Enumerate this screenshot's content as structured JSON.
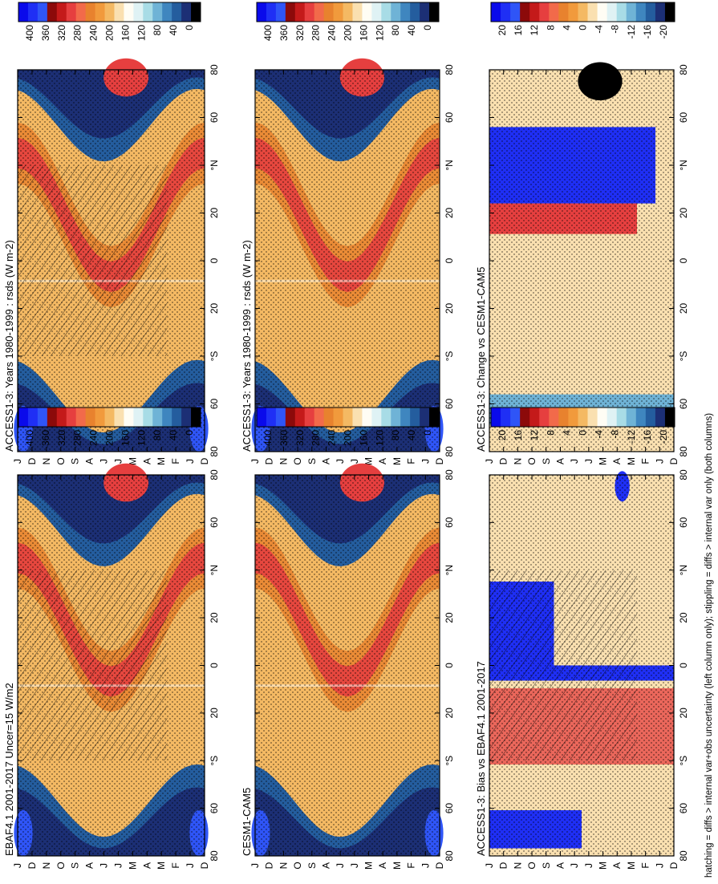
{
  "figure": {
    "footnote": "hatching = diffs > internal var+obs uncertainty (left column only); stippling = diffs > internal var only (both columns)"
  },
  "colors": {
    "abs_scale": [
      "#0a0aeb",
      "#1f2ff5",
      "#2f55f7",
      "#8c0a0a",
      "#c41a1a",
      "#e63f3f",
      "#f26a4a",
      "#e8822e",
      "#f19a3c",
      "#f4b963",
      "#fae0b0",
      "#fffdf4",
      "#dff2f4",
      "#a8dce6",
      "#6fb3d6",
      "#3f86bf",
      "#245d9e",
      "#1c2f75",
      "#000000"
    ],
    "diff_scale": [
      "#0a0aeb",
      "#1f2ff5",
      "#2f55f7",
      "#8c0a0a",
      "#c41a1a",
      "#e63f3f",
      "#f26a4a",
      "#e8822e",
      "#f19a3c",
      "#f4b963",
      "#fae0b0",
      "#fffdf4",
      "#dff2f4",
      "#a8dce6",
      "#6fb3d6",
      "#3f86bf",
      "#245d9e",
      "#1c2f75",
      "#000000"
    ],
    "stipple": "#000000"
  },
  "chart_data": [
    {
      "type": "heatmap",
      "title": "ACCESS1-3: Years 1980-1999 : rsds (W m-2)",
      "x_ticks": [
        "D",
        "J",
        "F",
        "M",
        "A",
        "M",
        "J",
        "J",
        "A",
        "S",
        "O",
        "N",
        "D",
        "J"
      ],
      "y_ticks": [
        "80",
        "60",
        "°N",
        "20",
        "0",
        "20",
        "°S",
        "60",
        "80"
      ],
      "colorbar": [
        "400",
        "360",
        "320",
        "280",
        "240",
        "200",
        "160",
        "120",
        "80",
        "40",
        "0"
      ],
      "hatched": true,
      "stippled": true
    },
    {
      "type": "heatmap",
      "title": "ACCESS1-3: Years 1980-1999 : rsds (W m-2)",
      "x_ticks": [
        "D",
        "J",
        "F",
        "M",
        "A",
        "M",
        "J",
        "J",
        "A",
        "S",
        "O",
        "N",
        "D",
        "J"
      ],
      "y_ticks": [
        "80",
        "60",
        "°N",
        "20",
        "0",
        "20",
        "°S",
        "60",
        "80"
      ],
      "colorbar": [
        "400",
        "360",
        "320",
        "280",
        "240",
        "200",
        "160",
        "120",
        "80",
        "40",
        "0"
      ],
      "hatched": false,
      "stippled": true
    },
    {
      "type": "heatmap",
      "title": "EBAF4.1 2001-2017 Uncer=15 W/m2",
      "x_ticks": [
        "D",
        "J",
        "F",
        "M",
        "A",
        "M",
        "J",
        "J",
        "A",
        "S",
        "O",
        "N",
        "D",
        "J"
      ],
      "y_ticks": [
        "80",
        "60",
        "°N",
        "20",
        "0",
        "20",
        "°S",
        "60",
        "80"
      ],
      "colorbar": [
        "400",
        "360",
        "320",
        "280",
        "240",
        "200",
        "160",
        "120",
        "80",
        "40",
        "0"
      ],
      "hatched": true,
      "stippled": true
    },
    {
      "type": "heatmap",
      "title": "CESM1-CAM5",
      "x_ticks": [
        "D",
        "J",
        "F",
        "M",
        "A",
        "M",
        "J",
        "J",
        "A",
        "S",
        "O",
        "N",
        "D",
        "J"
      ],
      "y_ticks": [
        "80",
        "60",
        "°N",
        "20",
        "0",
        "20",
        "°S",
        "60",
        "80"
      ],
      "colorbar": [
        "400",
        "360",
        "320",
        "280",
        "240",
        "200",
        "160",
        "120",
        "80",
        "40",
        "0"
      ],
      "hatched": false,
      "stippled": true
    },
    {
      "type": "heatmap",
      "title": "ACCESS1-3: Bias vs EBAF4.1 2001-2017",
      "x_ticks": [
        "D",
        "J",
        "F",
        "M",
        "A",
        "M",
        "J",
        "J",
        "A",
        "S",
        "O",
        "N",
        "D",
        "J"
      ],
      "y_ticks": [
        "80",
        "60",
        "°N",
        "20",
        "0",
        "20",
        "°S",
        "60",
        "80"
      ],
      "colorbar": [
        "20",
        "16",
        "12",
        "8",
        "4",
        "0",
        "-4",
        "-8",
        "-12",
        "-16",
        "-20"
      ],
      "hatched": true,
      "stippled": true
    },
    {
      "type": "heatmap",
      "title": "ACCESS1-3: Change vs CESM1-CAM5",
      "x_ticks": [
        "D",
        "J",
        "F",
        "M",
        "A",
        "M",
        "J",
        "J",
        "A",
        "S",
        "O",
        "N",
        "D",
        "J"
      ],
      "y_ticks": [
        "80",
        "60",
        "°N",
        "20",
        "0",
        "20",
        "°S",
        "60",
        "80"
      ],
      "colorbar": [
        "20",
        "16",
        "12",
        "8",
        "4",
        "0",
        "-4",
        "-8",
        "-12",
        "-16",
        "-20"
      ],
      "hatched": false,
      "stippled": true
    }
  ]
}
